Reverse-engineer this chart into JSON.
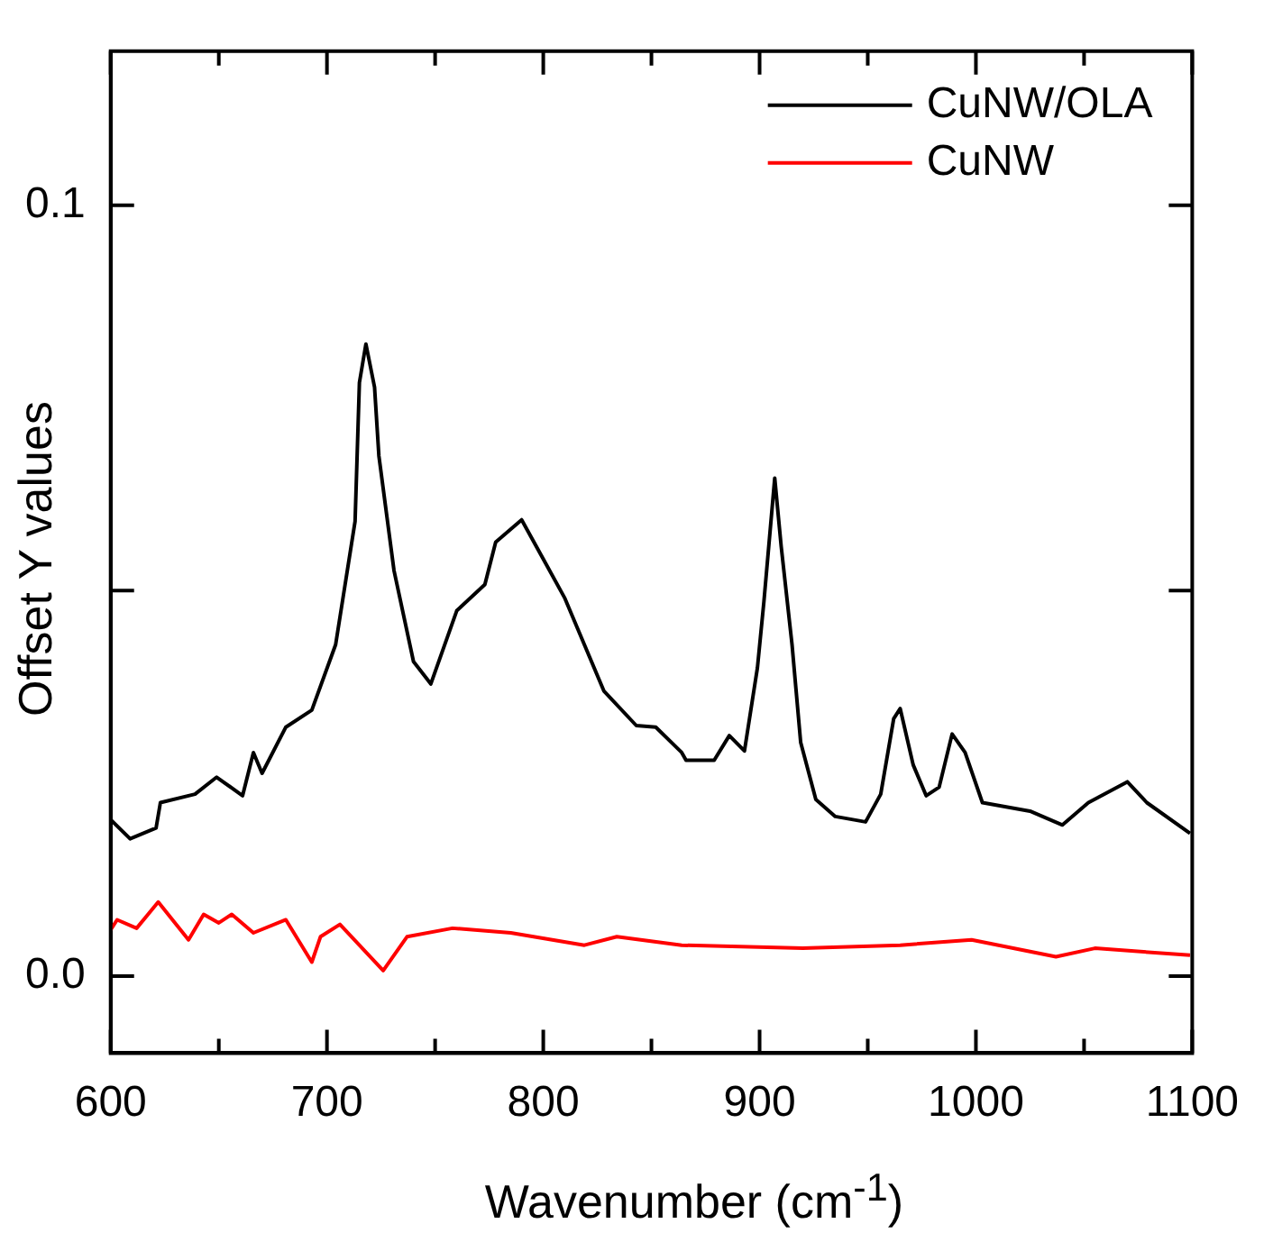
{
  "chart_data": {
    "type": "line",
    "xlabel": "Wavenumber (cm$^{-1}$)",
    "ylabel": "Offset Y values",
    "xlim": [
      600,
      1100
    ],
    "ylim": [
      -0.01,
      0.12
    ],
    "xticks": [
      600,
      {
        "value": 650,
        "label": null
      },
      700,
      {
        "value": 750,
        "label": null
      },
      800,
      {
        "value": 850,
        "label": null
      },
      900,
      {
        "value": 950,
        "label": null
      },
      1000,
      {
        "value": 1050,
        "label": null
      },
      1100
    ],
    "yticks": [
      {
        "value": 0,
        "label": "0.0"
      },
      {
        "value": 0.05,
        "label": null
      },
      0.1
    ],
    "grid": false,
    "legend": "top right",
    "marker": "none",
    "line_style": "solid",
    "series": [
      {
        "name": "CuNW/OLA",
        "color": "#000000",
        "x": [
          600,
          609,
          621,
          623,
          639,
          649,
          661,
          666,
          670,
          681,
          693,
          704,
          713,
          715,
          718,
          722,
          724,
          731,
          740,
          748,
          760,
          773,
          778,
          790,
          800,
          810,
          828,
          843,
          852,
          864,
          866,
          879,
          886,
          893,
          899,
          902,
          907,
          910,
          915,
          919,
          926,
          935,
          949,
          956,
          962,
          965,
          971,
          977,
          983,
          989,
          995,
          1003,
          1025,
          1040,
          1052,
          1070,
          1079,
          1099
        ],
        "values": [
          0.0203,
          0.0178,
          0.0192,
          0.0225,
          0.0236,
          0.0258,
          0.0234,
          0.029,
          0.0263,
          0.0323,
          0.0345,
          0.043,
          0.059,
          0.077,
          0.082,
          0.0764,
          0.0675,
          0.0526,
          0.0408,
          0.0379,
          0.0474,
          0.0508,
          0.0563,
          0.0592,
          0.0541,
          0.049,
          0.037,
          0.0325,
          0.0323,
          0.029,
          0.028,
          0.028,
          0.0312,
          0.0292,
          0.04,
          0.0486,
          0.0646,
          0.0557,
          0.043,
          0.0303,
          0.0229,
          0.0207,
          0.02,
          0.0236,
          0.0334,
          0.0347,
          0.0274,
          0.0234,
          0.0245,
          0.0314,
          0.029,
          0.0225,
          0.0214,
          0.0196,
          0.0225,
          0.0252,
          0.0225,
          0.0185
        ]
      },
      {
        "name": "CuNW",
        "color": "#ff0000",
        "x": [
          600,
          603,
          612,
          622,
          636,
          643,
          650,
          656,
          666,
          681,
          693,
          697,
          706,
          726,
          737,
          758,
          785,
          819,
          834,
          864,
          920,
          965,
          998,
          1037,
          1055,
          1099
        ],
        "values": [
          0.006,
          0.0073,
          0.0062,
          0.0096,
          0.0047,
          0.008,
          0.0069,
          0.008,
          0.0056,
          0.0073,
          0.0018,
          0.0051,
          0.0067,
          0.0007,
          0.0051,
          0.0062,
          0.0056,
          0.004,
          0.0051,
          0.004,
          0.0036,
          0.004,
          0.0047,
          0.0025,
          0.0036,
          0.0027
        ]
      }
    ]
  }
}
